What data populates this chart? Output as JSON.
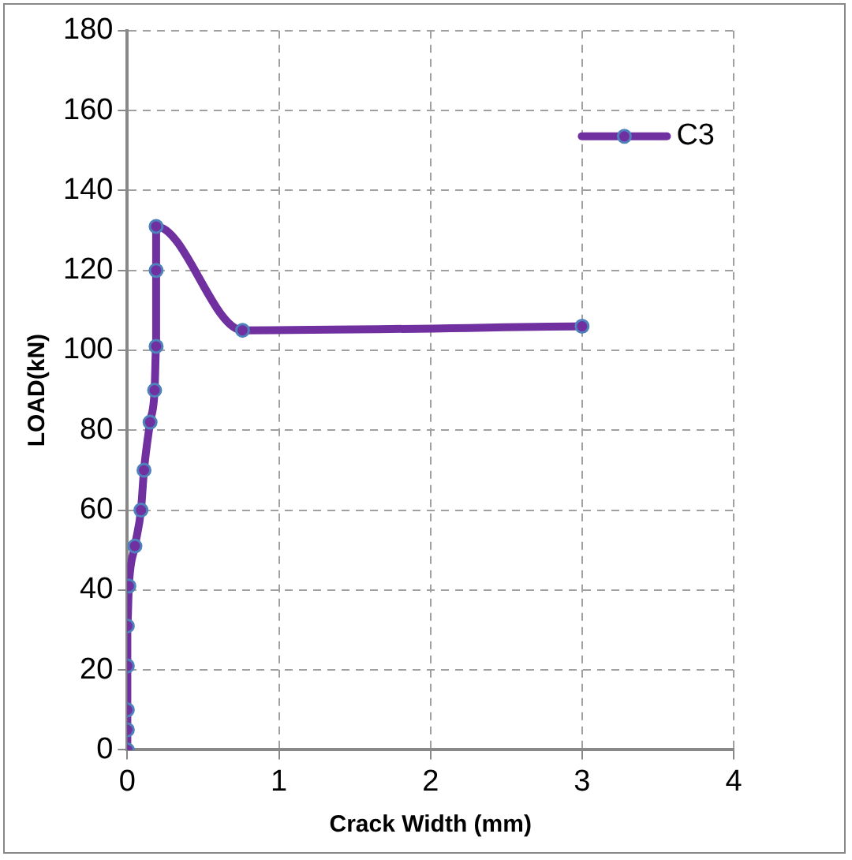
{
  "chart_data": {
    "type": "line",
    "xlabel": "Crack Width (mm)",
    "ylabel": "LOAD(kN)",
    "series": [
      {
        "name": "C3",
        "color": "#7030a0",
        "x": [
          0,
          0,
          0,
          0,
          0,
          0.01,
          0.05,
          0.09,
          0.11,
          0.15,
          0.18,
          0.19,
          0.19,
          0.19,
          0.76,
          3
        ],
        "values": [
          0,
          5,
          10,
          21,
          31,
          41,
          51,
          60,
          70,
          82,
          90,
          101,
          120,
          131,
          105,
          106
        ]
      }
    ],
    "xlim": [
      0,
      4
    ],
    "xticks": [
      0,
      1,
      2,
      3,
      4
    ],
    "ylim": [
      0,
      180
    ],
    "yticks": [
      0,
      20,
      40,
      60,
      80,
      100,
      120,
      140,
      160,
      180
    ],
    "grid": true,
    "legend": "top right",
    "marker": "circle",
    "line_style": "solid"
  }
}
